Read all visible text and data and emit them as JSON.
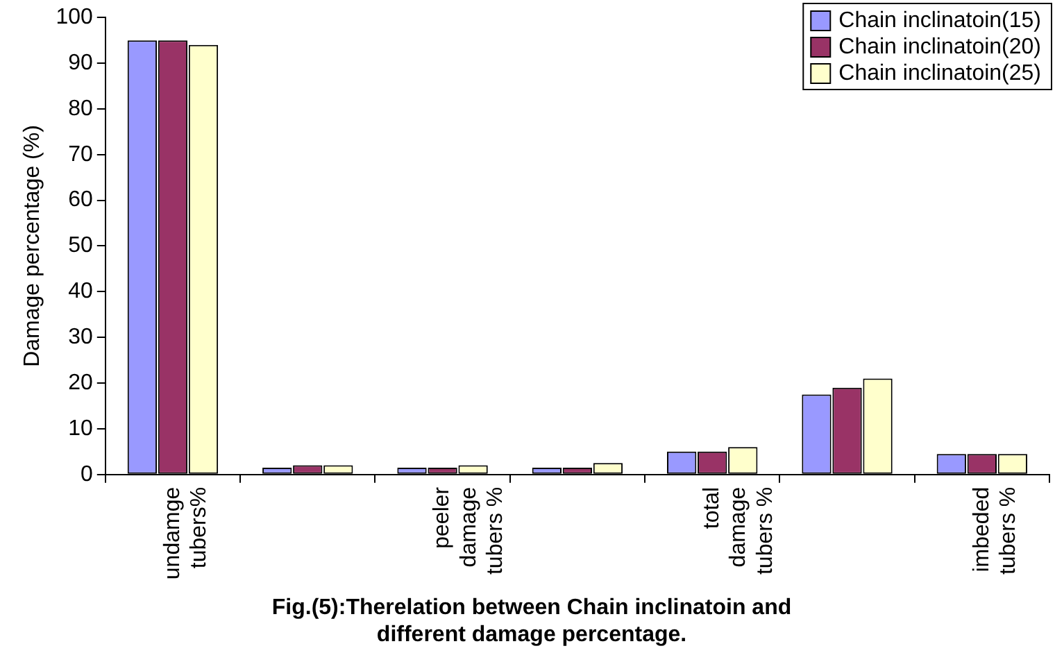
{
  "chart_data": {
    "type": "bar",
    "title": "Fig.(5):Therelation between Chain inclinatoin and different damage percentage.",
    "ylabel": "Damage percentage (%)",
    "categories": [
      "undamge tubers%",
      null,
      "peeler damage tubers %",
      null,
      "total damage tubers %",
      null,
      "imbeded tubers %"
    ],
    "series": [
      {
        "name": "Chain inclinatoin(15)",
        "color": "#9999ff",
        "values": [
          95,
          1.5,
          1.5,
          1.5,
          5,
          17.5,
          4.5
        ]
      },
      {
        "name": "Chain inclinatoin(20)",
        "color": "#993366",
        "values": [
          95,
          2,
          1.5,
          1.5,
          5,
          19,
          4.5
        ]
      },
      {
        "name": "Chain inclinatoin(25)",
        "color": "#ffffcc",
        "values": [
          94,
          2,
          2,
          2.5,
          6,
          21,
          4.5
        ]
      }
    ],
    "ylim": [
      0,
      100
    ],
    "yticks": [
      0,
      10,
      20,
      30,
      40,
      50,
      60,
      70,
      80,
      90,
      100
    ],
    "grid": false,
    "legend": "top right"
  }
}
